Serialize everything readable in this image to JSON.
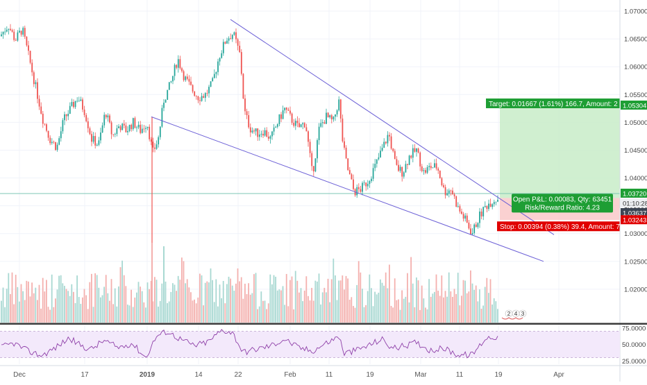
{
  "chart_data": [
    {
      "type": "candlestick",
      "title": "",
      "ylim": [
        1.014,
        1.072
      ],
      "y_ticks": [
        "1.07000",
        "1.06500",
        "1.06000",
        "1.05500",
        "1.05000",
        "1.04500",
        "1.04000",
        "1.03500",
        "1.03000",
        "1.02500",
        "1.02000"
      ],
      "x_ticks": [
        "Dec",
        "17",
        "2019",
        "14",
        "22",
        "Feb",
        "11",
        "19",
        "Mar",
        "11",
        "19",
        "Apr"
      ],
      "price_path": [
        [
          0,
          1.0655
        ],
        [
          12,
          1.0675
        ],
        [
          22,
          1.0648
        ],
        [
          32,
          1.0668
        ],
        [
          42,
          1.0615
        ],
        [
          52,
          1.056
        ],
        [
          62,
          1.0505
        ],
        [
          72,
          1.047
        ],
        [
          82,
          1.0455
        ],
        [
          92,
          1.0505
        ],
        [
          102,
          1.0525
        ],
        [
          112,
          1.0545
        ],
        [
          122,
          1.052
        ],
        [
          132,
          1.047
        ],
        [
          142,
          1.046
        ],
        [
          152,
          1.052
        ],
        [
          162,
          1.0475
        ],
        [
          172,
          1.0495
        ],
        [
          182,
          1.0485
        ],
        [
          192,
          1.05
        ],
        [
          202,
          1.0485
        ],
        [
          212,
          1.05
        ],
        [
          220,
          1.0445
        ],
        [
          228,
          1.047
        ],
        [
          236,
          1.054
        ],
        [
          246,
          1.057
        ],
        [
          256,
          1.0615
        ],
        [
          266,
          1.058
        ],
        [
          276,
          1.056
        ],
        [
          286,
          1.0545
        ],
        [
          296,
          1.055
        ],
        [
          306,
          1.057
        ],
        [
          316,
          1.062
        ],
        [
          326,
          1.065
        ],
        [
          336,
          1.066
        ],
        [
          346,
          1.062
        ],
        [
          352,
          1.052
        ],
        [
          360,
          1.049
        ],
        [
          370,
          1.048
        ],
        [
          380,
          1.0485
        ],
        [
          390,
          1.047
        ],
        [
          400,
          1.05
        ],
        [
          410,
          1.0525
        ],
        [
          420,
          1.0505
        ],
        [
          430,
          1.049
        ],
        [
          440,
          1.05
        ],
        [
          450,
          1.0405
        ],
        [
          460,
          1.049
        ],
        [
          470,
          1.051
        ],
        [
          480,
          1.05
        ],
        [
          488,
          1.054
        ],
        [
          494,
          1.046
        ],
        [
          500,
          1.042
        ],
        [
          510,
          1.0375
        ],
        [
          520,
          1.038
        ],
        [
          530,
          1.0395
        ],
        [
          540,
          1.042
        ],
        [
          550,
          1.045
        ],
        [
          560,
          1.048
        ],
        [
          570,
          1.042
        ],
        [
          580,
          1.041
        ],
        [
          590,
          1.044
        ],
        [
          600,
          1.045
        ],
        [
          610,
          1.041
        ],
        [
          620,
          1.042
        ],
        [
          630,
          1.042
        ],
        [
          640,
          1.0375
        ],
        [
          650,
          1.038
        ],
        [
          660,
          1.0345
        ],
        [
          670,
          1.0325
        ],
        [
          680,
          1.03
        ],
        [
          690,
          1.033
        ],
        [
          700,
          1.035
        ],
        [
          710,
          1.036
        ],
        [
          718,
          1.0364
        ]
      ],
      "trendlines": [
        {
          "name": "upper-trendline",
          "from": [
            332,
            1.0685
          ],
          "to": [
            798,
            1.0298
          ],
          "color": "#6b5fd6"
        },
        {
          "name": "lower-trendline",
          "from": [
            218,
            1.051
          ],
          "to": [
            783,
            1.025
          ],
          "color": "#6b5fd6"
        }
      ],
      "horizontal_line": {
        "price": 1.0372,
        "color": "#7ec7b5"
      },
      "position": {
        "entry": 1.0364,
        "target": 1.05304,
        "stop": 1.03243,
        "x_start": 720,
        "x_end": 893,
        "target_label": "Target: 0.01667 (1.61%) 166.7, Amount: 2",
        "pnl_label_1": "Open P&L: 0.00083, Qty: 63451",
        "pnl_label_2": "Risk/Reward Ratio: 4.23",
        "stop_label": "Stop: 0.00394 (0.38%) 39.4, Amount: 7"
      },
      "price_labels": [
        {
          "text": "1.05304",
          "price": 1.05304,
          "bg": "#1e9e34",
          "fg": "#ffffff"
        },
        {
          "text": "1.03720",
          "price": 1.0372,
          "bg": "#1e9e34",
          "fg": "#ffffff"
        },
        {
          "text": "01:10:28",
          "price": 1.0364,
          "bg": "#eef0f3",
          "fg": "#333333"
        },
        {
          "text": "1.03637",
          "price": 1.03555,
          "bg": "#3d4654",
          "fg": "#ffffff"
        },
        {
          "text": "1.03243",
          "price": 1.03243,
          "bg": "#e00000",
          "fg": "#ffffff"
        }
      ],
      "volume_badges": [
        "2",
        "4",
        "3"
      ],
      "colors": {
        "up": "#26a69a",
        "down": "#ef5350",
        "up_vol": "#a8d8d2",
        "down_vol": "#f4b0ae"
      }
    },
    {
      "type": "line",
      "indicator": "RSI",
      "ylim": [
        20,
        80
      ],
      "y_ticks": [
        "75.0000",
        "50.0000",
        "25.0000"
      ],
      "band": [
        30,
        70
      ],
      "rsi_path": [
        [
          0,
          45
        ],
        [
          20,
          52
        ],
        [
          40,
          40
        ],
        [
          60,
          33
        ],
        [
          80,
          45
        ],
        [
          100,
          60
        ],
        [
          110,
          52
        ],
        [
          130,
          42
        ],
        [
          150,
          56
        ],
        [
          170,
          45
        ],
        [
          190,
          52
        ],
        [
          210,
          30
        ],
        [
          225,
          62
        ],
        [
          240,
          70
        ],
        [
          260,
          58
        ],
        [
          280,
          48
        ],
        [
          300,
          54
        ],
        [
          320,
          72
        ],
        [
          335,
          68
        ],
        [
          350,
          38
        ],
        [
          370,
          43
        ],
        [
          390,
          48
        ],
        [
          410,
          58
        ],
        [
          430,
          45
        ],
        [
          450,
          40
        ],
        [
          470,
          52
        ],
        [
          490,
          63
        ],
        [
          494,
          36
        ],
        [
          510,
          40
        ],
        [
          530,
          48
        ],
        [
          550,
          58
        ],
        [
          565,
          44
        ],
        [
          580,
          47
        ],
        [
          600,
          53
        ],
        [
          620,
          41
        ],
        [
          640,
          44
        ],
        [
          660,
          34
        ],
        [
          680,
          34
        ],
        [
          700,
          60
        ],
        [
          718,
          62
        ]
      ],
      "color": "#8e3fa8"
    }
  ]
}
